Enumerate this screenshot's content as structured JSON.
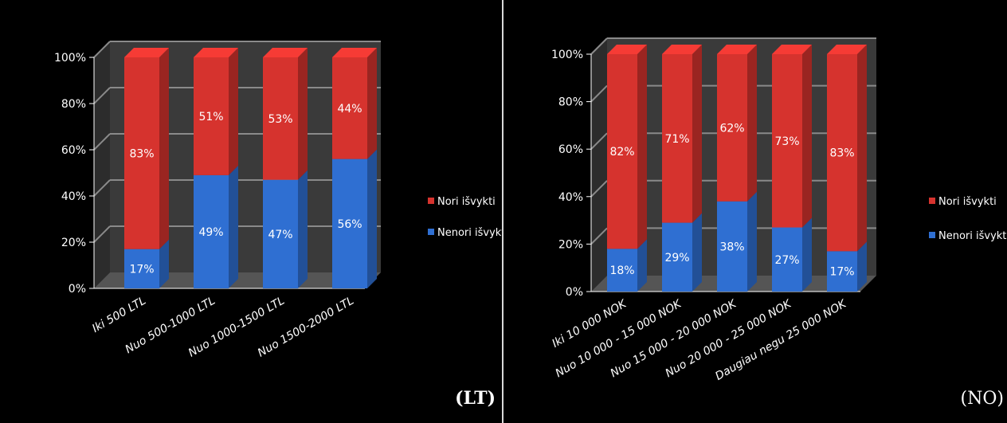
{
  "chart_data": [
    {
      "type": "bar",
      "stacked": true,
      "percent": true,
      "title": "",
      "xlabel": "",
      "ylabel": "",
      "ylim": [
        0,
        100
      ],
      "yticks": [
        "0%",
        "20%",
        "40%",
        "60%",
        "80%",
        "100%"
      ],
      "grid": true,
      "legend_position": "right",
      "corner_label": "(LT)",
      "categories": [
        "Iki 500 LTL",
        "Nuo 500-1000 LTL",
        "Nuo 1000-1500 LTL",
        "Nuo 1500-2000 LTL"
      ],
      "series": [
        {
          "name": "Nenori išvykti",
          "values": [
            17,
            49,
            47,
            56
          ],
          "labels": [
            "17%",
            "49%",
            "47%",
            "56%"
          ],
          "color": "#2f6fd2"
        },
        {
          "name": "Nori išvykti",
          "values": [
            83,
            51,
            53,
            44
          ],
          "labels": [
            "83%",
            "51%",
            "53%",
            "44%"
          ],
          "color": "#d6332e"
        }
      ],
      "legend": [
        "Nori išvykti",
        "Nenori išvykti"
      ]
    },
    {
      "type": "bar",
      "stacked": true,
      "percent": true,
      "title": "",
      "xlabel": "",
      "ylabel": "",
      "ylim": [
        0,
        100
      ],
      "yticks": [
        "0%",
        "20%",
        "40%",
        "60%",
        "80%",
        "100%"
      ],
      "grid": true,
      "legend_position": "right",
      "corner_label": "(NO)",
      "categories": [
        "Iki 10 000 NOK",
        "Nuo 10 000 - 15 000 NOK",
        "Nuo 15 000 - 20 000  NOK",
        "Nuo 20 000 - 25 000  NOK",
        "Daugiau negu 25 000 NOK"
      ],
      "series": [
        {
          "name": "Nenori išvykti",
          "values": [
            18,
            29,
            38,
            27,
            17
          ],
          "labels": [
            "18%",
            "29%",
            "38%",
            "27%",
            "17%"
          ],
          "color": "#2f6fd2"
        },
        {
          "name": "Nori išvykti",
          "values": [
            82,
            71,
            62,
            73,
            83
          ],
          "labels": [
            "82%",
            "71%",
            "62%",
            "73%",
            "83%"
          ],
          "color": "#d6332e"
        }
      ],
      "legend": [
        "Nori išvykti",
        "Nenori išvykti"
      ]
    }
  ]
}
